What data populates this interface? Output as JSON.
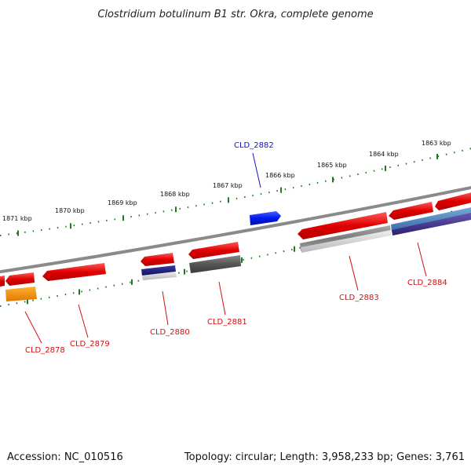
{
  "map": {
    "title": "Clostridium botulinum B1 str. Okra, complete genome",
    "accession": "Accession: NC_010516",
    "summary": "Topology: circular; Length: 3,958,233 bp; Genes: 3,761",
    "colors": {
      "backbone": "#8a8a8a",
      "tick": "#1f7a1f",
      "gene_red": "#ee1111",
      "gene_blue": "#0022ee",
      "label_red": "#d11111",
      "label_blue": "#1111cc"
    },
    "kbp_labels": [
      "1871 kbp",
      "1870 kbp",
      "1869 kbp",
      "1868 kbp",
      "1867 kbp",
      "1866 kbp",
      "1865 kbp",
      "1864 kbp",
      "1863 kbp"
    ],
    "genes": [
      {
        "id": "CLD_2878",
        "color": "red"
      },
      {
        "id": "CLD_2879",
        "color": "red"
      },
      {
        "id": "CLD_2880",
        "color": "red"
      },
      {
        "id": "CLD_2881",
        "color": "red"
      },
      {
        "id": "CLD_2882",
        "color": "blue"
      },
      {
        "id": "CLD_2883",
        "color": "red"
      },
      {
        "id": "CLD_2884",
        "color": "red"
      }
    ]
  }
}
